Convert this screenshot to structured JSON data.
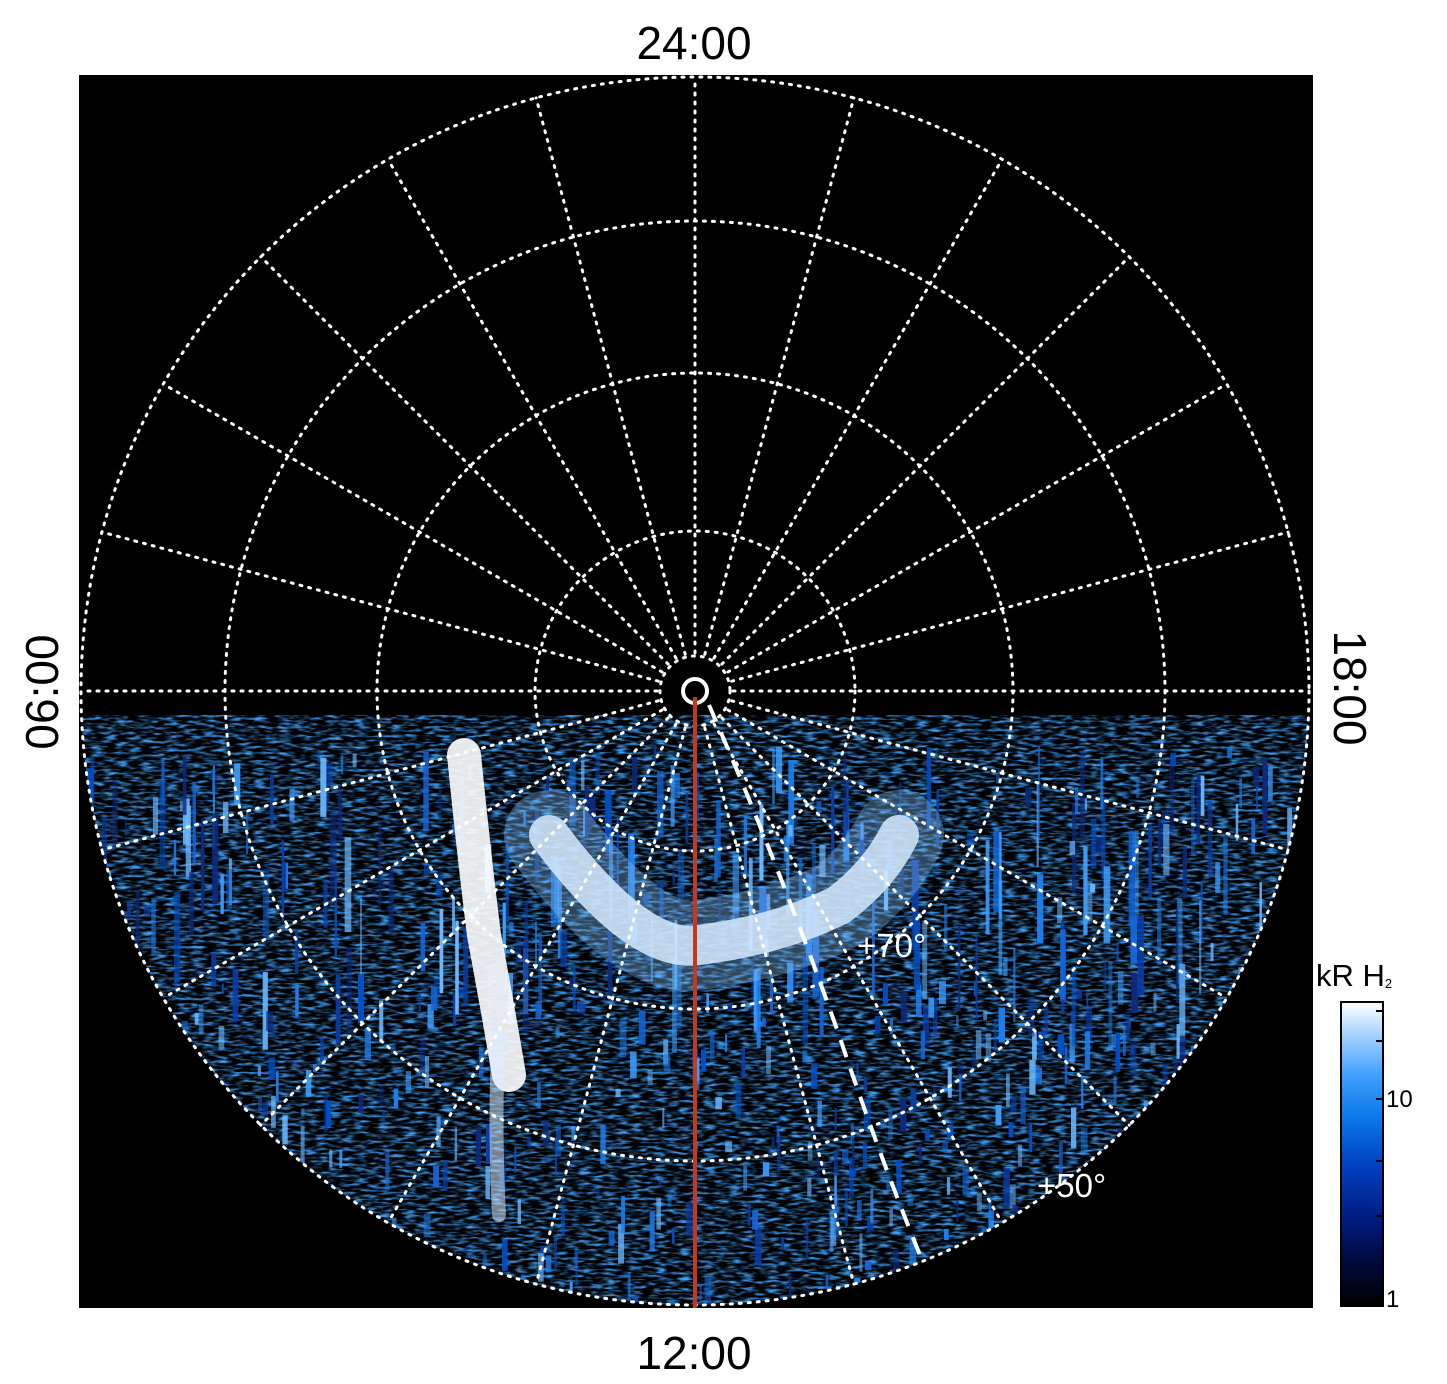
{
  "figure": {
    "local_time_labels": {
      "top": "24:00",
      "bottom": "12:00",
      "left": "06:00",
      "right": "18:00"
    },
    "latitude_labels": [
      "+70°",
      "+50°"
    ],
    "colorbar": {
      "title_main": "kR H",
      "title_sub": "2",
      "ticks": [
        "10",
        "1"
      ],
      "scale": "log"
    }
  },
  "chart_data": {
    "type": "heatmap",
    "projection": "polar (north pole at center, local time around the circle)",
    "local_time_positions": {
      "top": "24:00",
      "bottom": "12:00",
      "left": "06:00",
      "right": "18:00"
    },
    "latitude_circles_labeled": [
      "+70°",
      "+50°"
    ],
    "meridian_spacing_hours": 1,
    "grid": true,
    "grid_style": "white dotted",
    "highlight_meridian_lt": "12:00",
    "highlight_meridian_color": "#c8361c",
    "dashed_line_color": "#ffffff",
    "colorscale": "black to blue to white",
    "colorbar_units": "kR H2",
    "colorbar_ticks": [
      1,
      10
    ],
    "colorbar_log": true,
    "data_coverage": "dayside hemisphere (06:00 through 12:00 to 18:00)",
    "emission_features": [
      "bright arc of emission near pole on dayside around 12:00",
      "bright vertical band near 09:00–10:00",
      "noisy diffuse emission toward lower latitudes"
    ]
  }
}
